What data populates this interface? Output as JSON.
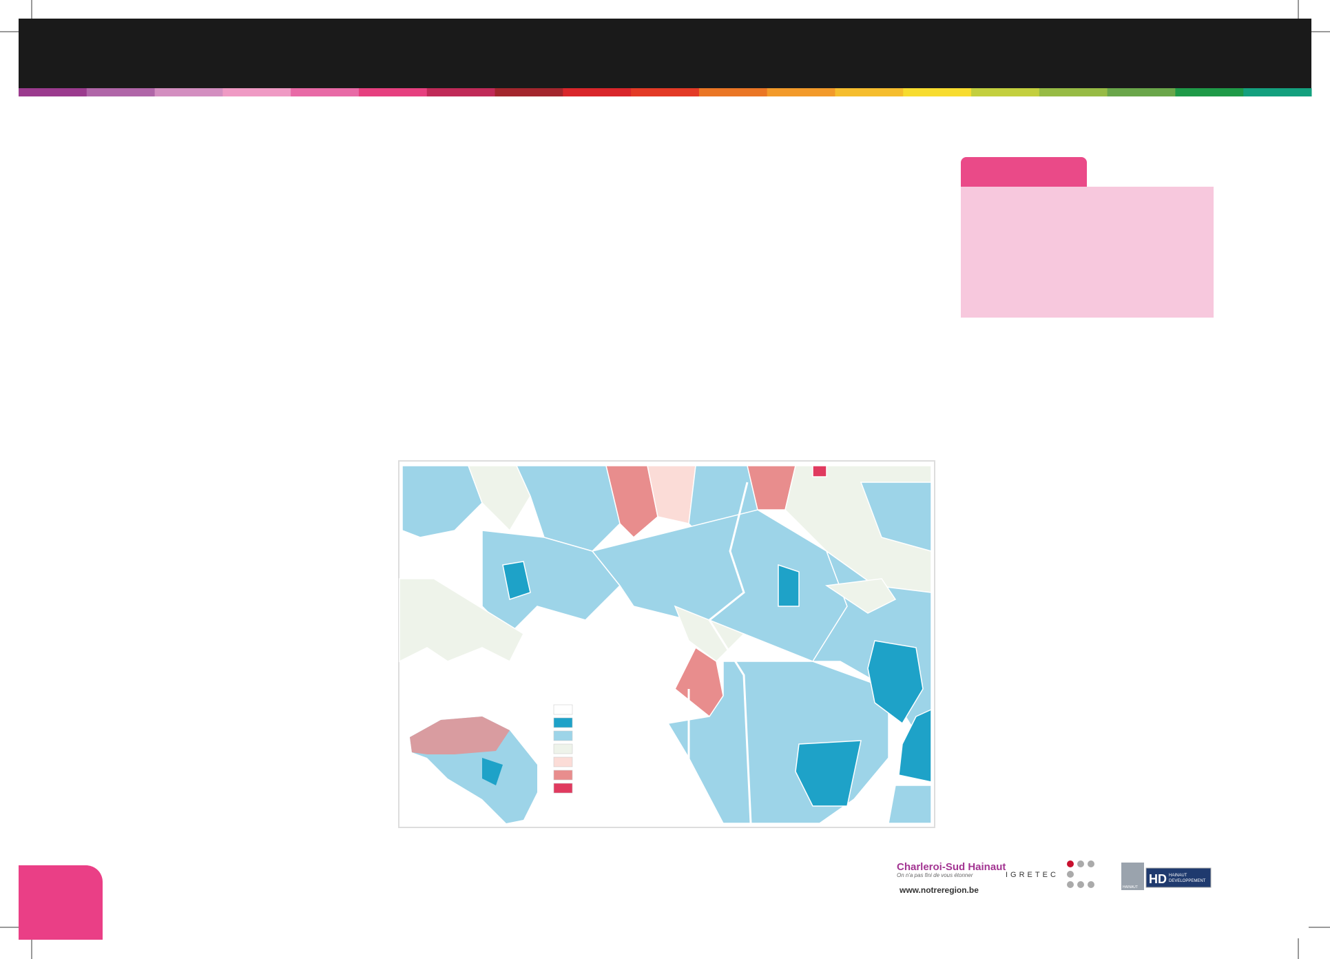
{
  "logos": {
    "charleroi": {
      "name": "Charleroi-Sud Hainaut",
      "tagline": "On n'a pas fini de vous étonner",
      "url": "www.notreregion.be"
    },
    "igretec": "IGRETEC",
    "hainaut": {
      "province": "HAINAUT",
      "name": "HAINAUT",
      "subtitle": "DEVELOPPEMENT"
    }
  }
}
